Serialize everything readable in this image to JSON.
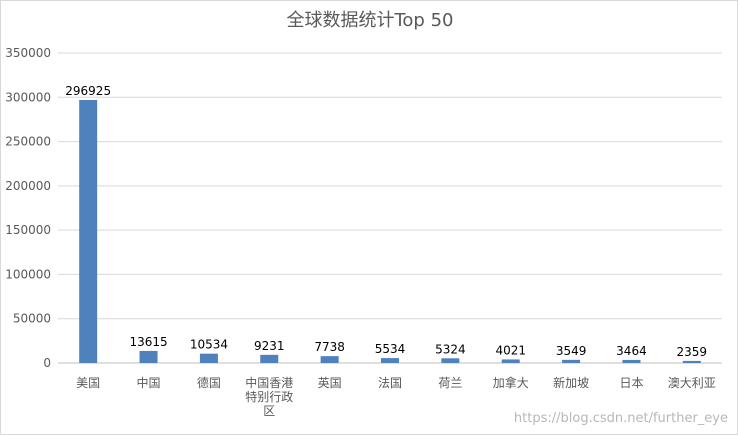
{
  "chart_data": {
    "type": "bar",
    "title": "全球数据统计Top 50",
    "categories": [
      "美国",
      "中国",
      "德国",
      "中国香港特别行政区",
      "英国",
      "法国",
      "荷兰",
      "加拿大",
      "新加坡",
      "日本",
      "澳大利亚"
    ],
    "values": [
      296925,
      13615,
      10534,
      9231,
      7738,
      5534,
      5324,
      4021,
      3549,
      3464,
      2359
    ],
    "ylim": [
      0,
      350000
    ],
    "yticks": [
      0,
      50000,
      100000,
      150000,
      200000,
      250000,
      300000,
      350000
    ],
    "xlabel": "",
    "ylabel": "",
    "grid": true,
    "legend": "none",
    "data_labels": true,
    "bar_color": "#4f81bd"
  },
  "watermark": "https://blog.csdn.net/further_eye"
}
